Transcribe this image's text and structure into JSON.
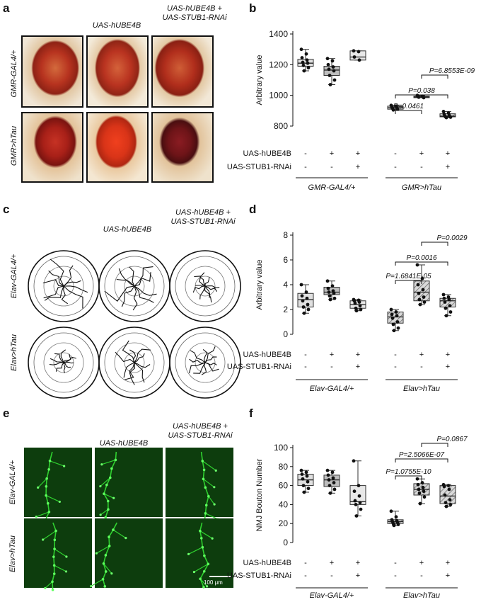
{
  "panel_labels": {
    "a": "a",
    "b": "b",
    "c": "c",
    "d": "d",
    "e": "e",
    "f": "f"
  },
  "panel_a": {
    "col_labels": [
      "",
      "UAS-hUBE4B",
      "UAS-hUBE4B +\nUAS-STUB1-RNAi"
    ],
    "row_labels": [
      "GMR-GAL4/+",
      "GMR>hTau"
    ]
  },
  "panel_c": {
    "col_labels": [
      "",
      "UAS-hUBE4B",
      "UAS-hUBE4B +\nUAS-STUB1-RNAi"
    ],
    "row_labels": [
      "Elav-GAL4/+",
      "Elav>hTau"
    ]
  },
  "panel_e": {
    "col_labels": [
      "",
      "UAS-hUBE4B",
      "UAS-hUBE4B +\nUAS-STUB1-RNAi"
    ],
    "row_labels": [
      "Elav-GAL4/+",
      "Elav>hTau"
    ],
    "scale_bar": "100 μm"
  },
  "colors": {
    "accent_green": "#2fd12f",
    "eye_red": "#b3261e",
    "box_gray": "#cfcfcf"
  },
  "chart_data": [
    {
      "type": "box",
      "panel": "b",
      "ylabel": "Arbitrary value",
      "ylim": [
        800,
        1400
      ],
      "yticks": [
        800,
        1000,
        1200,
        1400
      ],
      "row_labels": [
        "UAS-hUBE4B",
        "UAS-STUB1-RNAi"
      ],
      "row_values": [
        [
          "-",
          "+",
          "+",
          "-",
          "+",
          "+"
        ],
        [
          "-",
          "-",
          "+",
          "-",
          "-",
          "+"
        ]
      ],
      "group_labels": [
        "GMR-GAL4/+",
        "GMR>hTau"
      ],
      "boxes": [
        {
          "min": 1160,
          "q1": 1190,
          "median": 1210,
          "q3": 1235,
          "max": 1300,
          "points": [
            1300,
            1270,
            1245,
            1230,
            1215,
            1210,
            1195,
            1180,
            1160
          ]
        },
        {
          "min": 1070,
          "q1": 1130,
          "median": 1165,
          "q3": 1190,
          "max": 1240,
          "points": [
            1240,
            1225,
            1200,
            1185,
            1170,
            1160,
            1130,
            1100,
            1070
          ]
        },
        {
          "min": 1230,
          "q1": 1230,
          "median": 1250,
          "q3": 1290,
          "max": 1290,
          "points": [
            1290,
            1285,
            1250,
            1230
          ]
        },
        {
          "min": 905,
          "q1": 910,
          "median": 920,
          "q3": 930,
          "max": 935,
          "points": [
            935,
            930,
            925,
            920,
            915,
            910,
            905
          ]
        },
        {
          "min": 985,
          "q1": 985,
          "median": 990,
          "q3": 995,
          "max": 1000,
          "points": [
            1000,
            995,
            992,
            990,
            988,
            985
          ]
        },
        {
          "min": 855,
          "q1": 860,
          "median": 865,
          "q3": 880,
          "max": 895,
          "points": [
            895,
            885,
            878,
            870,
            865,
            862,
            860,
            858,
            855
          ]
        }
      ],
      "comparisons": [
        {
          "from": 3,
          "to": 4,
          "label": "P=0.0461"
        },
        {
          "from": 3,
          "to": 5,
          "label": "P=0.038"
        },
        {
          "from": 4,
          "to": 5,
          "label": "P=6.8553E-09"
        }
      ]
    },
    {
      "type": "box",
      "panel": "d",
      "ylabel": "Arbitrary value",
      "ylim": [
        0,
        8
      ],
      "yticks": [
        0,
        2,
        4,
        6,
        8
      ],
      "row_labels": [
        "UAS-hUBE4B",
        "UAS-STUB1-RNAi"
      ],
      "row_values": [
        [
          "-",
          "+",
          "+",
          "-",
          "+",
          "+"
        ],
        [
          "-",
          "-",
          "+",
          "-",
          "-",
          "+"
        ]
      ],
      "group_labels": [
        "Elav-GAL4/+",
        "Elav>hTau"
      ],
      "boxes": [
        {
          "min": 1.7,
          "q1": 2.2,
          "median": 2.8,
          "q3": 3.3,
          "max": 4.0,
          "points": [
            4.0,
            3.4,
            3.1,
            2.9,
            2.7,
            2.4,
            2.2,
            2.0,
            1.7
          ]
        },
        {
          "min": 2.8,
          "q1": 3.2,
          "median": 3.4,
          "q3": 3.8,
          "max": 4.3,
          "points": [
            4.3,
            3.9,
            3.7,
            3.5,
            3.4,
            3.3,
            3.1,
            2.9,
            2.8
          ]
        },
        {
          "min": 1.9,
          "q1": 2.1,
          "median": 2.4,
          "q3": 2.7,
          "max": 2.8,
          "points": [
            2.8,
            2.75,
            2.7,
            2.6,
            2.5,
            2.3,
            2.1,
            2.0,
            1.9
          ]
        },
        {
          "min": 0.3,
          "q1": 0.9,
          "median": 1.4,
          "q3": 1.8,
          "max": 2.0,
          "points": [
            2.0,
            1.8,
            1.6,
            1.5,
            1.3,
            1.0,
            0.8,
            0.5,
            0.3
          ]
        },
        {
          "min": 2.4,
          "q1": 2.7,
          "median": 3.4,
          "q3": 4.3,
          "max": 5.6,
          "points": [
            5.6,
            4.5,
            4.0,
            3.6,
            3.3,
            3.0,
            2.8,
            2.6,
            2.4
          ]
        },
        {
          "min": 1.5,
          "q1": 2.2,
          "median": 2.7,
          "q3": 2.9,
          "max": 3.2,
          "points": [
            3.2,
            3.0,
            2.9,
            2.8,
            2.6,
            2.3,
            2.1,
            1.8,
            1.5
          ]
        }
      ],
      "comparisons": [
        {
          "from": 3,
          "to": 4,
          "label": "P=1.6841E-05"
        },
        {
          "from": 3,
          "to": 5,
          "label": "P=0.0016"
        },
        {
          "from": 4,
          "to": 5,
          "label": "P=0.0029"
        }
      ]
    },
    {
      "type": "box",
      "panel": "f",
      "ylabel": "NMJ Bouton Number",
      "ylim": [
        0,
        100
      ],
      "yticks": [
        0,
        20,
        40,
        60,
        80,
        100
      ],
      "row_labels": [
        "UAS-hUBE4B",
        "UAS-STUB1-RNAi"
      ],
      "row_values": [
        [
          "-",
          "+",
          "+",
          "-",
          "+",
          "+"
        ],
        [
          "-",
          "-",
          "+",
          "-",
          "-",
          "+"
        ]
      ],
      "group_labels": [
        "Elav-GAL4/+",
        "Elav>hTau"
      ],
      "boxes": [
        {
          "min": 53,
          "q1": 60,
          "median": 66,
          "q3": 72,
          "max": 76,
          "points": [
            76,
            74,
            72,
            70,
            67,
            64,
            60,
            57,
            53
          ]
        },
        {
          "min": 52,
          "q1": 59,
          "median": 66,
          "q3": 71,
          "max": 76,
          "points": [
            76,
            74,
            71,
            68,
            66,
            63,
            60,
            56,
            52
          ]
        },
        {
          "min": 28,
          "q1": 40,
          "median": 43,
          "q3": 60,
          "max": 86,
          "points": [
            86,
            60,
            54,
            49,
            44,
            42,
            40,
            35,
            28
          ]
        },
        {
          "min": 18,
          "q1": 20,
          "median": 22,
          "q3": 24,
          "max": 33,
          "points": [
            33,
            27,
            24,
            23,
            22,
            21,
            20,
            19,
            18
          ]
        },
        {
          "min": 41,
          "q1": 50,
          "median": 56,
          "q3": 62,
          "max": 67,
          "points": [
            67,
            63,
            61,
            58,
            56,
            54,
            52,
            48,
            41
          ]
        },
        {
          "min": 38,
          "q1": 41,
          "median": 49,
          "q3": 60,
          "max": 61,
          "points": [
            61,
            60,
            59,
            56,
            50,
            45,
            42,
            40,
            38
          ]
        }
      ],
      "comparisons": [
        {
          "from": 3,
          "to": 4,
          "label": "P=1.0755E-10"
        },
        {
          "from": 3,
          "to": 5,
          "label": "P=2.5066E-07"
        },
        {
          "from": 4,
          "to": 5,
          "label": "P=0.0867"
        }
      ]
    }
  ]
}
